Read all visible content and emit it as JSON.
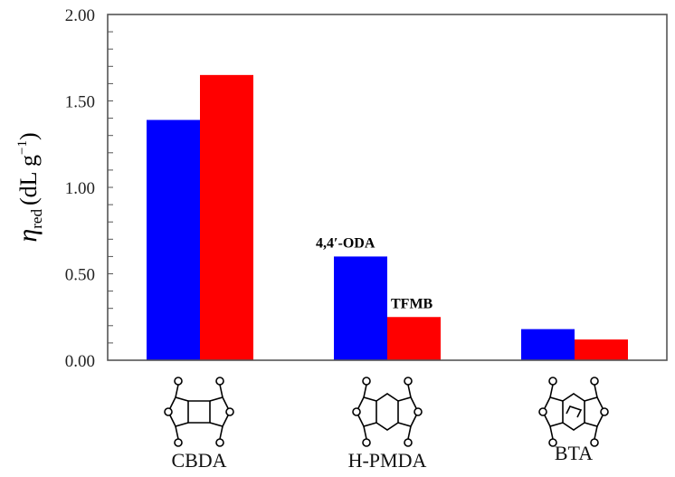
{
  "chart_data": {
    "type": "bar",
    "title": "",
    "xlabel": "",
    "ylabel": "ηred (dL g−1)",
    "ylabel_parts": {
      "symbol": "η",
      "subscript": "red",
      "unit_open": "(dL g",
      "unit_sup": "−1",
      "unit_close": ")"
    },
    "ylim": [
      0,
      2.0
    ],
    "yticks": [
      "0.00",
      "0.50",
      "1.00",
      "1.50",
      "2.00"
    ],
    "ytick_values": [
      0,
      0.5,
      1.0,
      1.5,
      2.0
    ],
    "minor_tick_step": 0.1,
    "grid": false,
    "categories": [
      "CBDA",
      "H-PMDA",
      "BTA"
    ],
    "series": [
      {
        "name": "4,4′-ODA",
        "color": "#0000ff",
        "values": [
          1.39,
          0.6,
          0.18
        ]
      },
      {
        "name": "TFMB",
        "color": "#ff0000",
        "values": [
          1.65,
          0.25,
          0.12
        ]
      }
    ],
    "annotations": [
      {
        "text": "4,4′-ODA",
        "category": "H-PMDA",
        "series": "4,4′-ODA"
      },
      {
        "text": "TFMB",
        "category": "H-PMDA",
        "series": "TFMB"
      }
    ],
    "legend": "none (series labelled by annotations above H-PMDA bars)"
  },
  "structures": [
    {
      "name": "CBDA",
      "icon": "cbda-structure-icon"
    },
    {
      "name": "H-PMDA",
      "icon": "hpmda-structure-icon"
    },
    {
      "name": "BTA",
      "icon": "bta-structure-icon"
    }
  ]
}
